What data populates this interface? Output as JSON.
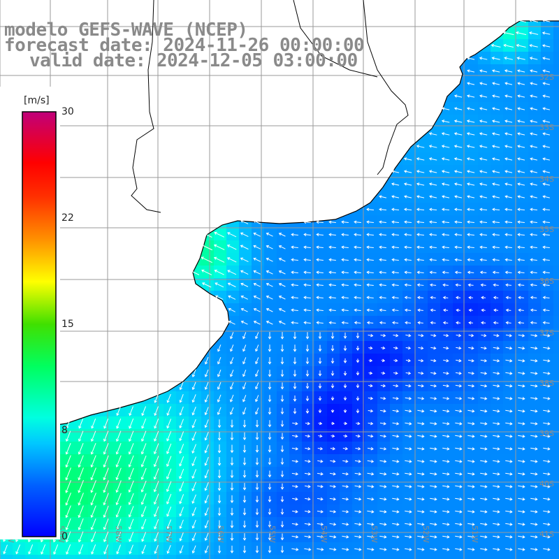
{
  "title": {
    "line1": "modelo GEFS-WAVE (NCEP)",
    "line2": "forecast date: 2024-11-26 00:00:00",
    "line3": "valid date: 2024-12-05 03:00:00"
  },
  "colorbar": {
    "unit": "[m/s]",
    "ticks": [
      "30",
      "22",
      "15",
      "8",
      "0"
    ],
    "colors": [
      "#0000ff",
      "#00a0ff",
      "#00ffff",
      "#00ff00",
      "#ffff00",
      "#ff8000",
      "#ff0000",
      "#c0007a"
    ]
  },
  "grid": {
    "lat_labels": [
      "32S",
      "33S",
      "34S",
      "35S",
      "36S",
      "37S",
      "38S",
      "39S",
      "40S",
      "41S"
    ],
    "lon_labels": [
      "60W",
      "59W",
      "58W",
      "57W",
      "56W",
      "55W",
      "54W",
      "53W",
      "52W",
      "51W"
    ]
  },
  "map_data": {
    "variable": "wind speed and direction",
    "unit": "m/s",
    "colorbar_range": [
      0,
      30
    ]
  }
}
